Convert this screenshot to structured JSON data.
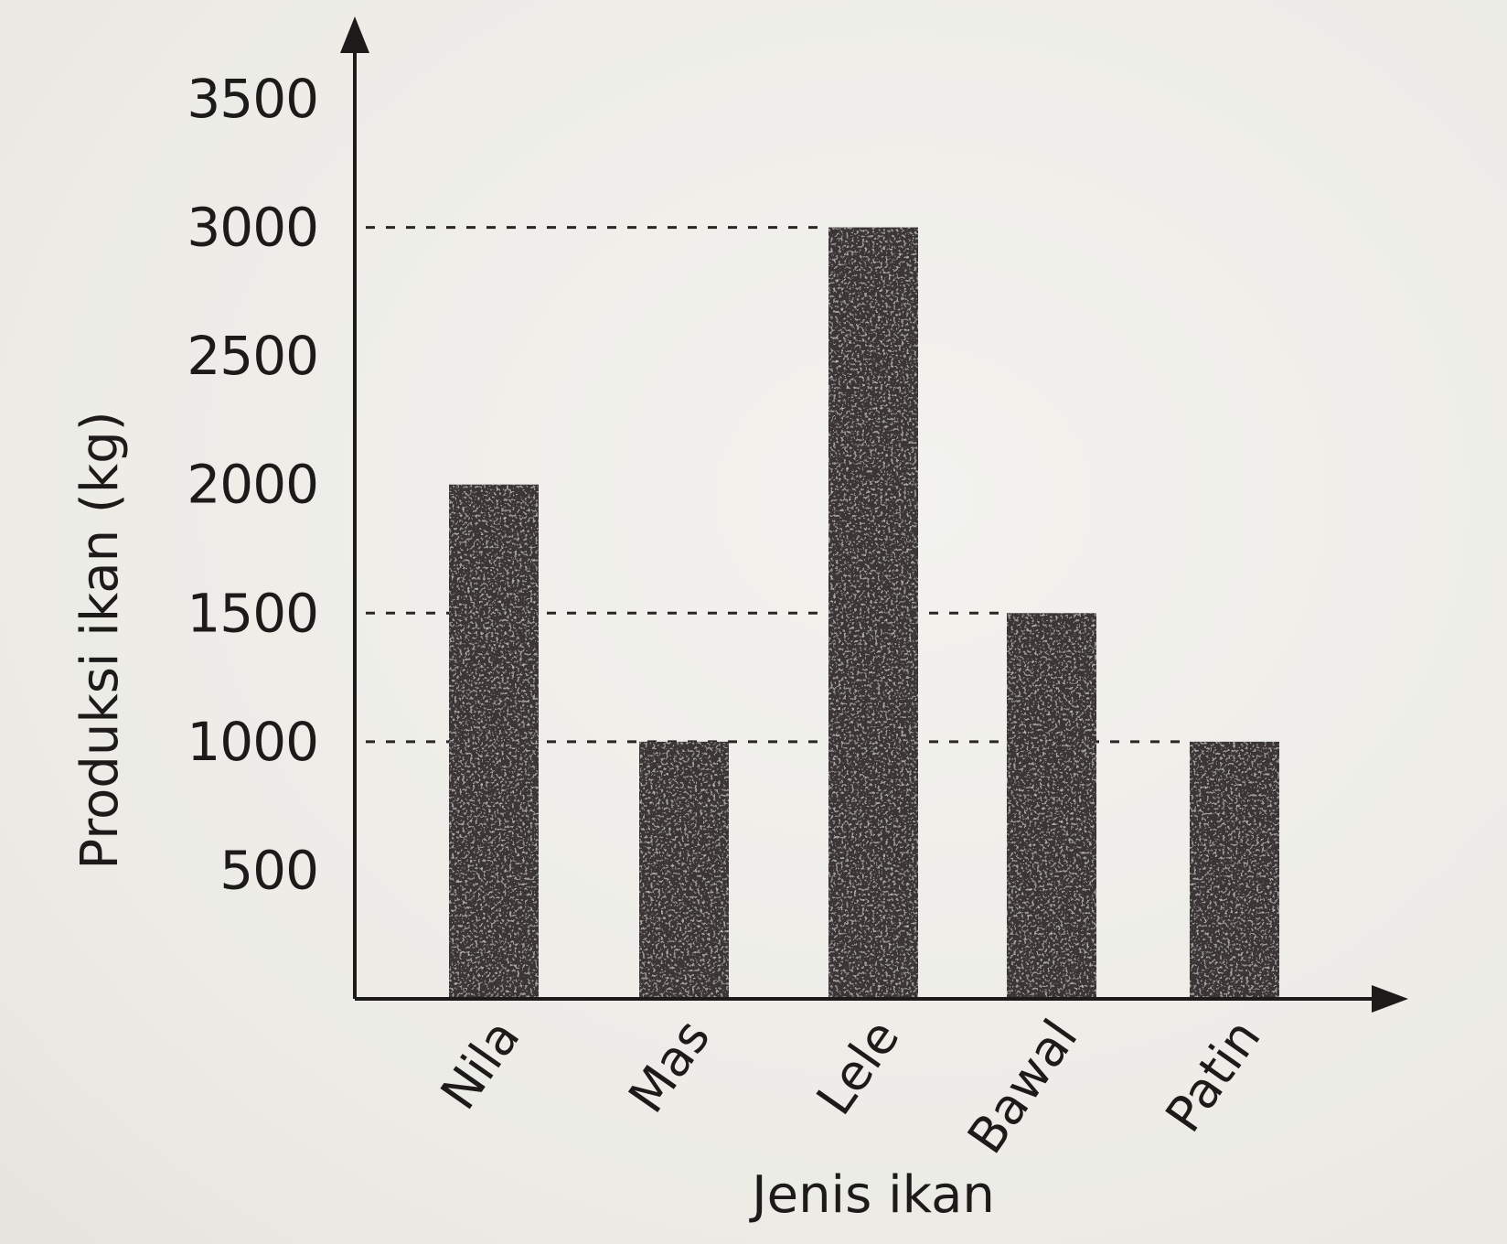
{
  "chart_data": {
    "type": "bar",
    "categories": [
      "Nila",
      "Mas",
      "Lele",
      "Bawal",
      "Patin"
    ],
    "values": [
      2000,
      1000,
      3000,
      1500,
      1000
    ],
    "title": "",
    "xlabel": "Jenis ikan",
    "ylabel": "Produksi ikan (kg)",
    "ylim": [
      0,
      3500
    ],
    "yticks": [
      500,
      1000,
      1500,
      2000,
      2500,
      3000,
      3500
    ],
    "ytick_labels": [
      "500",
      "1000",
      "1500",
      "2000",
      "2500",
      "3000",
      "3500"
    ],
    "reference_lines": [
      1000,
      1500,
      3000
    ],
    "grid": false,
    "legend": "none",
    "colors": {
      "bar": "#3b3534",
      "axis": "#1d1b1a",
      "dashed": "#2a2624",
      "background": "#efede8"
    }
  }
}
